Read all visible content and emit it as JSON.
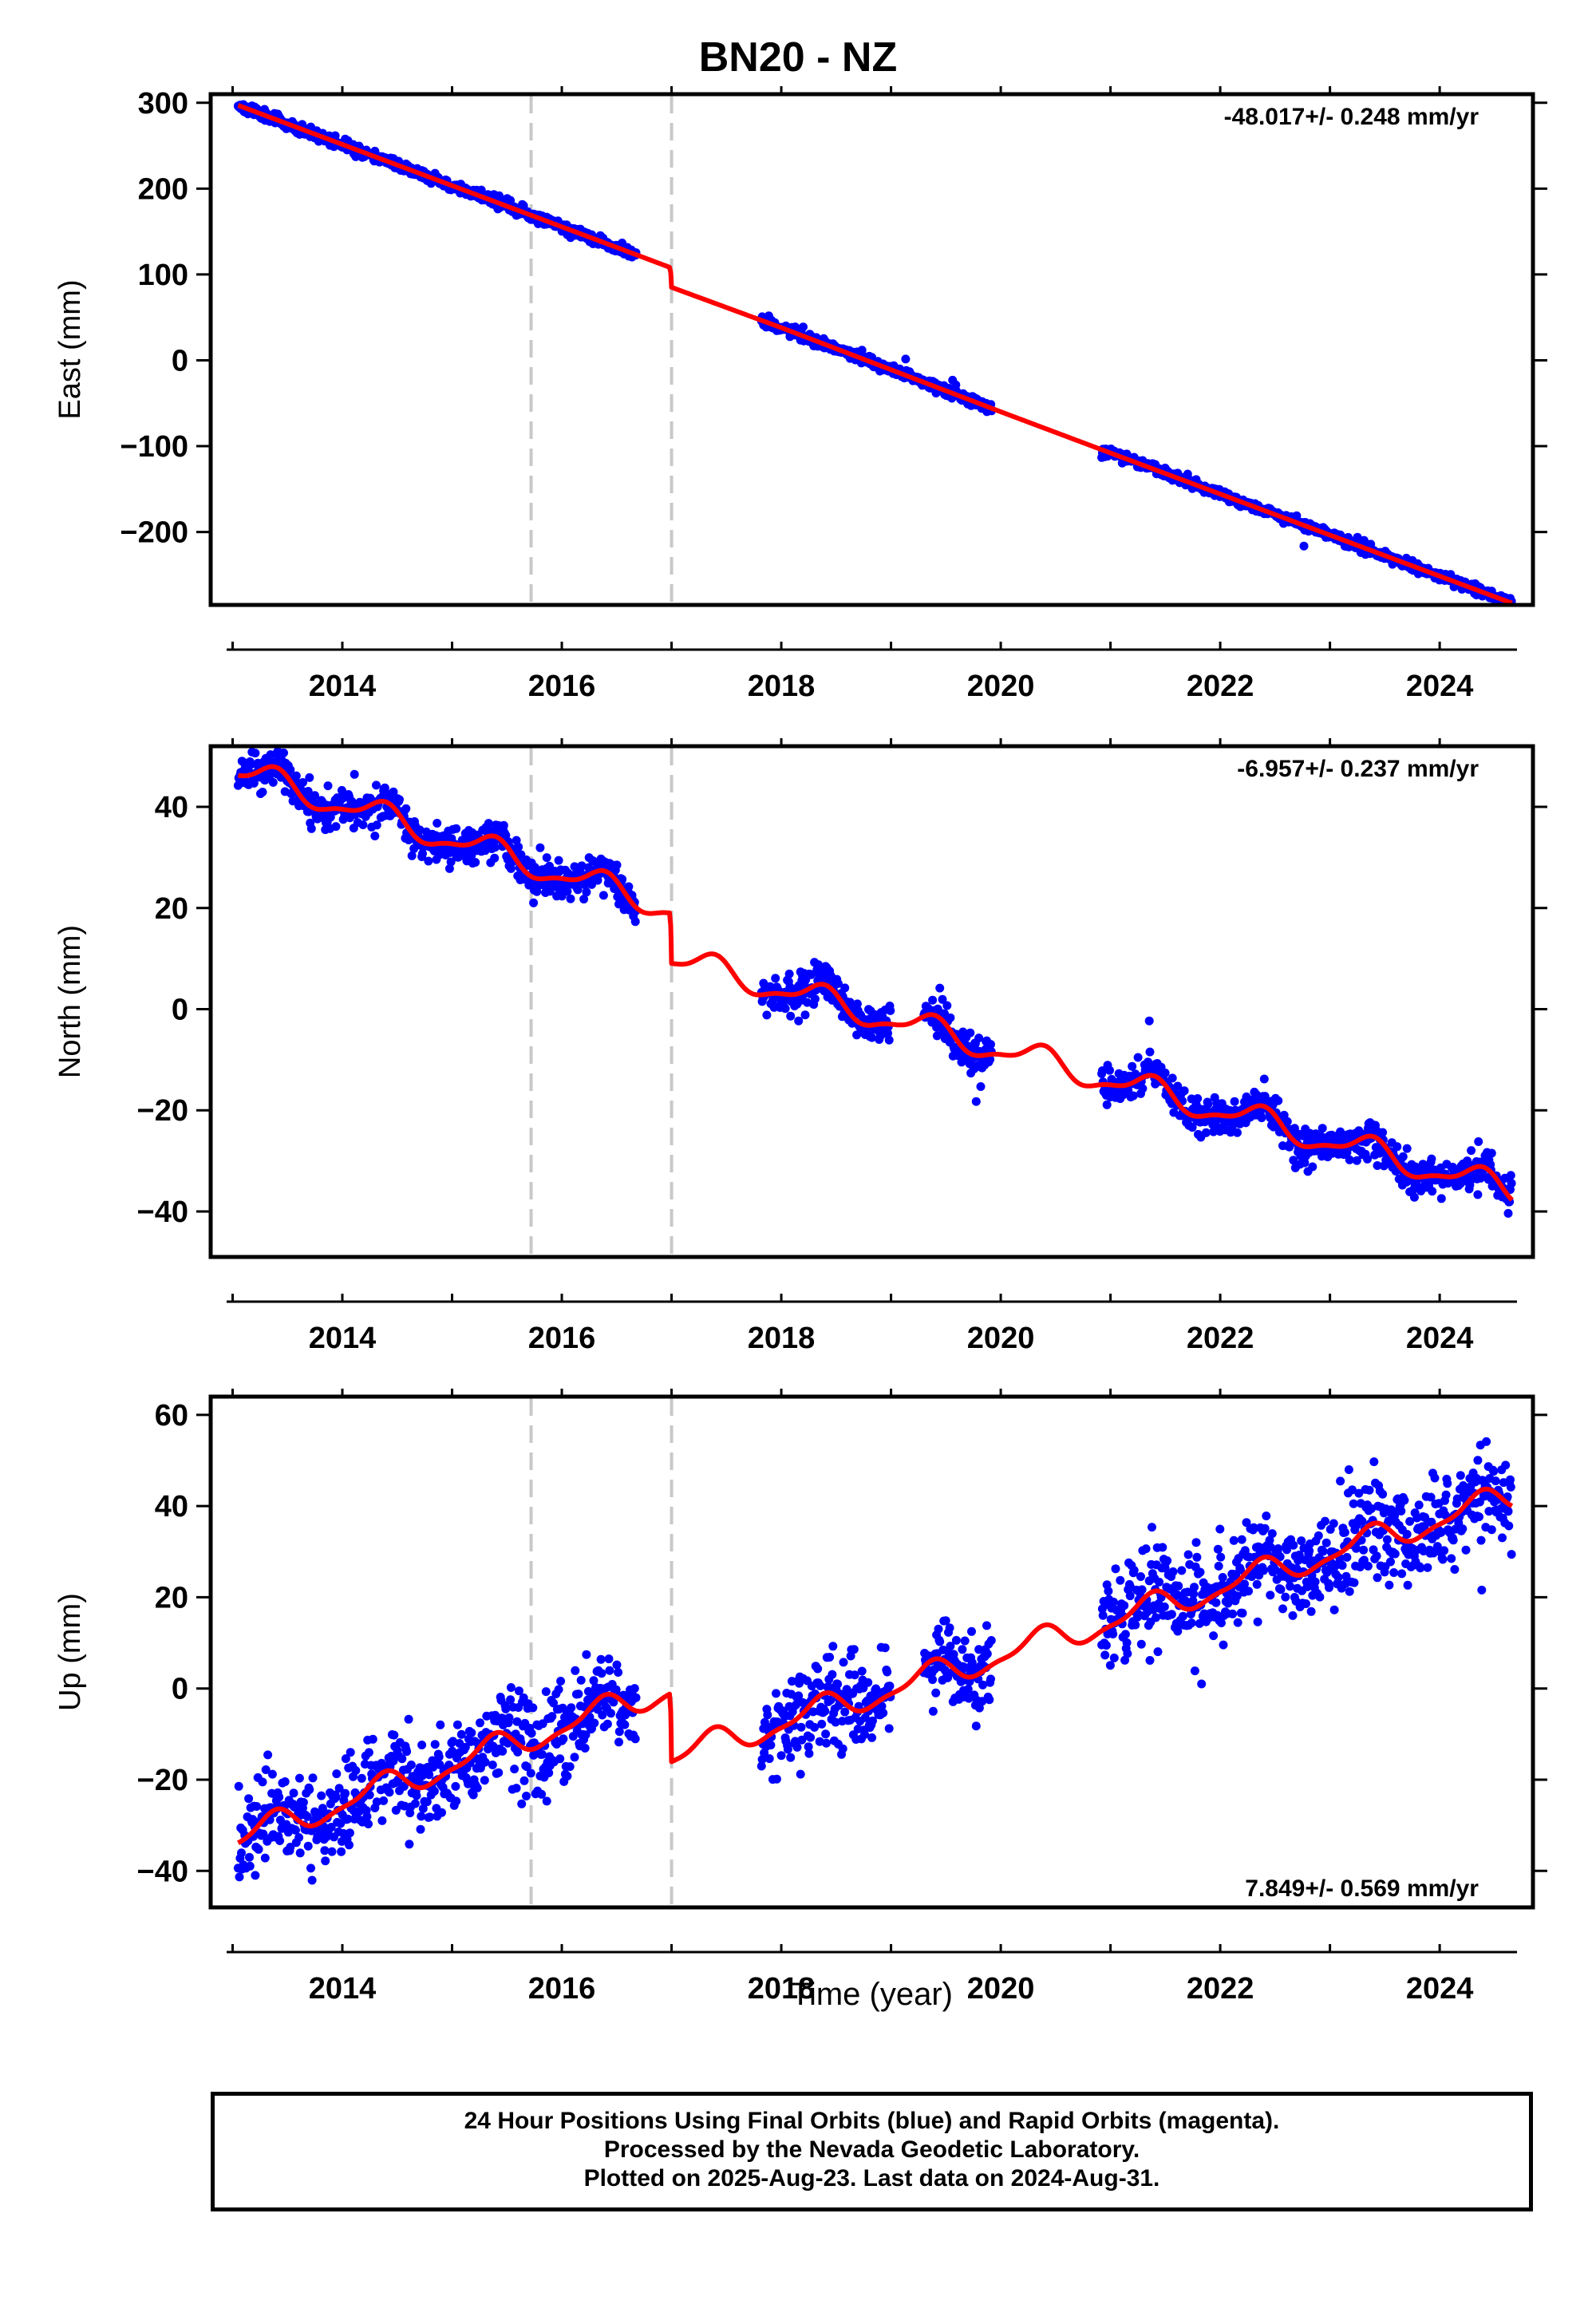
{
  "title": "BN20 - NZ",
  "xlabel": "Time (year)",
  "footer": {
    "line1": "24 Hour Positions Using Final Orbits (blue) and Rapid Orbits (magenta).",
    "line2": "Processed by the Nevada Geodetic Laboratory.",
    "line3": "Plotted on 2025-Aug-23. Last data on 2024-Aug-31."
  },
  "colors": {
    "data": "#0000ff",
    "fit": "#ff0000",
    "breaks": "#c8c8c8"
  },
  "chart_data": [
    {
      "type": "scatter",
      "name": "East",
      "ylabel": "East (mm)",
      "rate_text": "-48.017+/- 0.248 mm/yr",
      "rate_position": "top-right",
      "xlim": [
        2012.8,
        2024.85
      ],
      "ylim": [
        -285,
        310
      ],
      "xticks": [
        2014,
        2016,
        2018,
        2020,
        2022,
        2024
      ],
      "yticks": [
        -200,
        -100,
        0,
        100,
        200,
        300
      ],
      "breaks": [
        2015.72,
        2017.0
      ],
      "data_segments": [
        [
          2013.05,
          2016.68
        ],
        [
          2017.82,
          2019.92
        ],
        [
          2020.92,
          2024.66
        ]
      ],
      "fit": {
        "x": [
          2013.05,
          2016.99,
          2017.0,
          2018.0,
          2020.0,
          2021.0,
          2024.66
        ],
        "y": [
          297,
          108,
          85,
          38,
          -60,
          -108,
          -283
        ]
      },
      "scatter_sd": 3,
      "seed": 11
    },
    {
      "type": "scatter",
      "name": "North",
      "ylabel": "North (mm)",
      "rate_text": "-6.957+/- 0.237 mm/yr",
      "rate_position": "top-right",
      "xlim": [
        2012.8,
        2024.85
      ],
      "ylim": [
        -49,
        52
      ],
      "xticks": [
        2014,
        2016,
        2018,
        2020,
        2022,
        2024
      ],
      "yticks": [
        -40,
        -20,
        0,
        20,
        40
      ],
      "breaks": [
        2015.72,
        2017.0
      ],
      "data_segments": [
        [
          2013.05,
          2016.68
        ],
        [
          2017.82,
          2019.0
        ],
        [
          2019.3,
          2019.92
        ],
        [
          2020.92,
          2024.66
        ]
      ],
      "fit": {
        "x": [
          2013.05,
          2016.99,
          2017.0,
          2024.66
        ],
        "y": [
          47,
          20,
          10,
          -36
        ]
      },
      "seasonal_amp": 2.5,
      "scatter_sd": 1.8,
      "seed": 23
    },
    {
      "type": "scatter",
      "name": "Up",
      "ylabel": "Up (mm)",
      "rate_text": "7.849+/- 0.569 mm/yr",
      "rate_position": "bottom-right",
      "xlim": [
        2012.8,
        2024.85
      ],
      "ylim": [
        -48,
        64
      ],
      "xticks": [
        2014,
        2016,
        2018,
        2020,
        2022,
        2024
      ],
      "yticks": [
        -40,
        -20,
        0,
        20,
        40,
        60
      ],
      "breaks": [
        2015.72,
        2017.0
      ],
      "data_segments": [
        [
          2013.05,
          2016.68
        ],
        [
          2017.82,
          2019.0
        ],
        [
          2019.3,
          2019.92
        ],
        [
          2020.92,
          2024.66
        ]
      ],
      "fit": {
        "x": [
          2013.05,
          2016.99,
          2017.0,
          2024.66
        ],
        "y": [
          -33,
          0,
          -15,
          42
        ]
      },
      "seasonal_amp": 2.8,
      "scatter_sd": 5,
      "seed": 37
    }
  ]
}
